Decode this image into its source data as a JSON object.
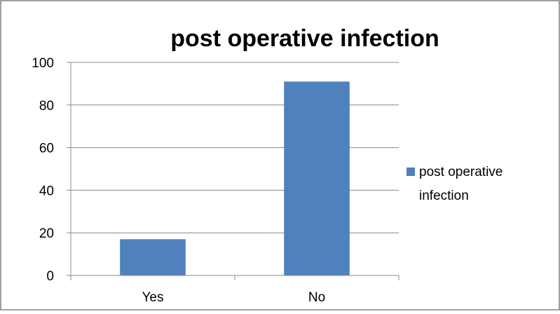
{
  "chart_data": {
    "type": "bar",
    "title": "post operative infection",
    "xlabel": "",
    "ylabel": "",
    "categories": [
      "Yes",
      "No"
    ],
    "series": [
      {
        "name": "post operative infection",
        "values": [
          17,
          91
        ],
        "color": "#4f81bd"
      }
    ],
    "ylim": [
      0,
      100
    ],
    "yticks": [
      0,
      20,
      40,
      60,
      80,
      100
    ],
    "grid": true,
    "legend_position": "right",
    "legend_lines": [
      "post operative",
      "infection"
    ]
  }
}
